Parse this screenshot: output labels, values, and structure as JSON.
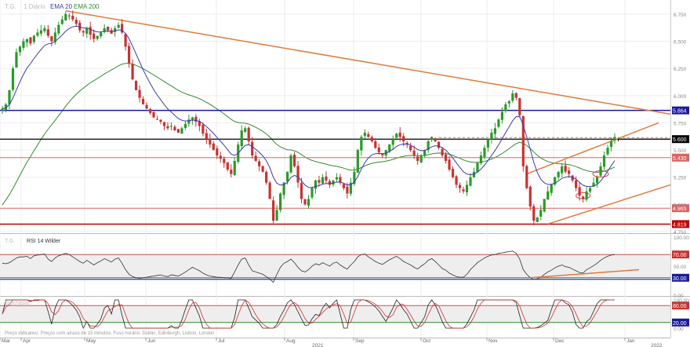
{
  "chart_data": {
    "type": "line",
    "instrument": "T.G.",
    "interval": "1 Diário",
    "overlays": [
      {
        "name": "EMA 20",
        "color": "#3b3ba8"
      },
      {
        "name": "EMA 200",
        "color": "#2e8b2e"
      }
    ],
    "price_axis": {
      "ylim": [
        4.75,
        6.85
      ],
      "ticks": [
        "6.750",
        "6.500",
        "6.250",
        "6.000",
        "5.750",
        "5.500",
        "5.250",
        "5.000",
        "4.750"
      ]
    },
    "levels": [
      {
        "label": "5.864",
        "value": 5.864,
        "color": "#1a1a9a"
      },
      {
        "label": "5.600",
        "value": 5.6,
        "color": "#000000"
      },
      {
        "label": "5.430",
        "value": 5.43,
        "color": "#e06060"
      },
      {
        "label": "4.965",
        "value": 4.965,
        "color": "#e06060"
      },
      {
        "label": "4.819",
        "value": 4.819,
        "color": "#c00000"
      }
    ],
    "x_axis": {
      "months": [
        "Mar",
        "Apr",
        "May",
        "Jun",
        "Jul",
        "Aug",
        "Sep",
        "Oct",
        "Nov",
        "Dec",
        "Jan"
      ],
      "years": [
        "2021",
        "2022"
      ]
    },
    "price_closes": [
      5.88,
      5.92,
      6.05,
      6.25,
      6.4,
      6.45,
      6.5,
      6.52,
      6.48,
      6.55,
      6.58,
      6.6,
      6.62,
      6.55,
      6.5,
      6.58,
      6.65,
      6.7,
      6.75,
      6.73,
      6.7,
      6.66,
      6.6,
      6.58,
      6.62,
      6.56,
      6.52,
      6.55,
      6.58,
      6.62,
      6.6,
      6.57,
      6.62,
      6.65,
      6.58,
      6.45,
      6.3,
      6.15,
      6.05,
      5.98,
      5.92,
      5.88,
      5.84,
      5.8,
      5.78,
      5.76,
      5.72,
      5.7,
      5.72,
      5.68,
      5.66,
      5.7,
      5.74,
      5.78,
      5.8,
      5.76,
      5.72,
      5.65,
      5.6,
      5.55,
      5.5,
      5.45,
      5.42,
      5.38,
      5.32,
      5.28,
      5.4,
      5.55,
      5.68,
      5.7,
      5.58,
      5.45,
      5.4,
      5.35,
      5.3,
      5.2,
      5.05,
      4.85,
      4.95,
      5.1,
      5.2,
      5.3,
      5.45,
      5.35,
      5.2,
      5.05,
      5.0,
      5.05,
      5.15,
      5.22,
      5.2,
      5.25,
      5.22,
      5.18,
      5.22,
      5.25,
      5.2,
      5.15,
      5.1,
      5.2,
      5.3,
      5.5,
      5.62,
      5.66,
      5.62,
      5.58,
      5.52,
      5.48,
      5.45,
      5.5,
      5.55,
      5.6,
      5.65,
      5.62,
      5.58,
      5.55,
      5.5,
      5.45,
      5.4,
      5.45,
      5.5,
      5.58,
      5.62,
      5.58,
      5.52,
      5.45,
      5.4,
      5.32,
      5.25,
      5.18,
      5.15,
      5.12,
      5.18,
      5.25,
      5.3,
      5.38,
      5.45,
      5.52,
      5.6,
      5.66,
      5.7,
      5.78,
      5.85,
      5.92,
      5.95,
      6.02,
      5.98,
      5.82,
      5.35,
      5.15,
      4.98,
      4.85,
      4.88,
      4.95,
      5.05,
      5.12,
      5.18,
      5.25,
      5.3,
      5.35,
      5.3,
      5.28,
      5.22,
      5.15,
      5.08,
      5.05,
      5.12,
      5.15,
      5.2,
      5.25,
      5.35,
      5.45,
      5.52,
      5.58,
      5.62
    ],
    "rsi": {
      "title": "RSI 14 Wilder",
      "ylim": [
        0,
        100
      ],
      "ticks": [
        "100.00",
        "50.00",
        "0.00"
      ],
      "levels": [
        {
          "label": "70.00",
          "value": 70
        },
        {
          "label": "30.00",
          "value": 30
        }
      ],
      "values": [
        55,
        54,
        56,
        60,
        64,
        66,
        66,
        67,
        63,
        68,
        69,
        70,
        71,
        62,
        58,
        64,
        68,
        70,
        72,
        70,
        66,
        62,
        58,
        55,
        60,
        56,
        52,
        56,
        59,
        63,
        60,
        57,
        62,
        64,
        55,
        44,
        36,
        32,
        30,
        29,
        30,
        31,
        32,
        33,
        34,
        35,
        33,
        32,
        35,
        34,
        33,
        36,
        40,
        44,
        48,
        45,
        42,
        38,
        35,
        33,
        32,
        31,
        31,
        30,
        30,
        29,
        40,
        52,
        62,
        64,
        52,
        42,
        40,
        38,
        36,
        32,
        28,
        22,
        36,
        48,
        55,
        58,
        62,
        56,
        48,
        42,
        40,
        44,
        50,
        54,
        52,
        56,
        53,
        50,
        55,
        57,
        52,
        48,
        45,
        52,
        58,
        66,
        70,
        71,
        66,
        62,
        58,
        55,
        53,
        57,
        61,
        64,
        67,
        63,
        58,
        55,
        52,
        48,
        45,
        50,
        54,
        60,
        63,
        58,
        52,
        46,
        43,
        38,
        35,
        32,
        31,
        31,
        36,
        44,
        50,
        56,
        60,
        64,
        67,
        69,
        70,
        72,
        73,
        74,
        75,
        76,
        72,
        62,
        44,
        36,
        30,
        27,
        28,
        31,
        36,
        40,
        43,
        47,
        50,
        52,
        49,
        48,
        45,
        42,
        39,
        38,
        44,
        47,
        51,
        55,
        60,
        64,
        67,
        69,
        70
      ],
      "trendline": [
        {
          "x": 150,
          "y": 30
        },
        {
          "x": 175,
          "y": 44
        }
      ]
    },
    "stochastic": {
      "title": "Stochastic",
      "ylim": [
        0,
        100
      ],
      "ticks": [
        "100.00",
        "0.00"
      ],
      "levels": [
        {
          "label": "80.00",
          "value": 80
        },
        {
          "label": "20.00",
          "value": 20
        }
      ]
    },
    "note": "Preço indicativo. Preços com atraso de 15 minutos. Fuso horário: Dublin, Edinburgh, Lisbon, London"
  }
}
